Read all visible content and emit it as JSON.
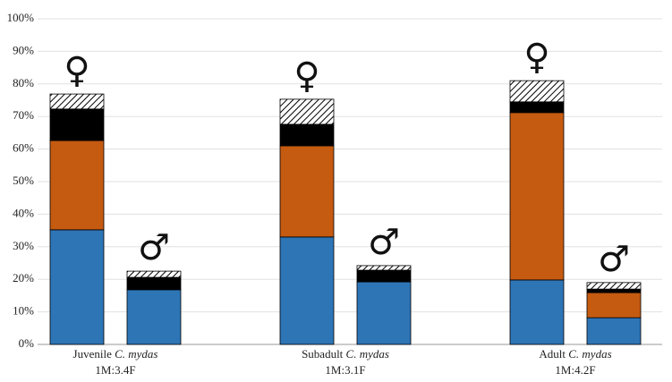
{
  "chart_data": {
    "type": "stacked_bar",
    "groups": [
      {
        "name": "Juvenile",
        "species": "C. mydas",
        "ratio": "1M:3.4F"
      },
      {
        "name": "Subadult",
        "species": "C. mydas",
        "ratio": "1M:3.1F"
      },
      {
        "name": "Adult",
        "species": "C. mydas",
        "ratio": "1M:4.2F"
      }
    ],
    "bar_symbols": [
      "♀",
      "♂",
      "♀",
      "♂",
      "♀",
      "♂"
    ],
    "series": [
      {
        "color": "#2e75b6",
        "values": [
          35.2,
          16.8,
          33.0,
          19.2,
          19.8,
          8.2
        ]
      },
      {
        "color": "#c55a11",
        "values": [
          27.4,
          0,
          28.0,
          0,
          51.4,
          7.7
        ]
      },
      {
        "color": "#000000",
        "values": [
          9.7,
          3.8,
          6.6,
          3.6,
          3.3,
          1.1
        ]
      },
      {
        "color": "#000000",
        "pattern": "hatched",
        "values": [
          4.6,
          1.9,
          7.7,
          1.4,
          6.5,
          2.0
        ]
      }
    ],
    "ylim": [
      0,
      100
    ],
    "yticks": [
      {
        "value": 0,
        "label": "0%"
      },
      {
        "value": 10,
        "label": "10%"
      },
      {
        "value": 20,
        "label": "20%"
      },
      {
        "value": 30,
        "label": "30%"
      },
      {
        "value": 40,
        "label": "40%"
      },
      {
        "value": 50,
        "label": "50%"
      },
      {
        "value": 60,
        "label": "60%"
      },
      {
        "value": 70,
        "label": "70%"
      },
      {
        "value": 80,
        "label": "80%"
      },
      {
        "value": 90,
        "label": "90%"
      },
      {
        "value": 100,
        "label": "100%"
      }
    ],
    "grid": true
  }
}
